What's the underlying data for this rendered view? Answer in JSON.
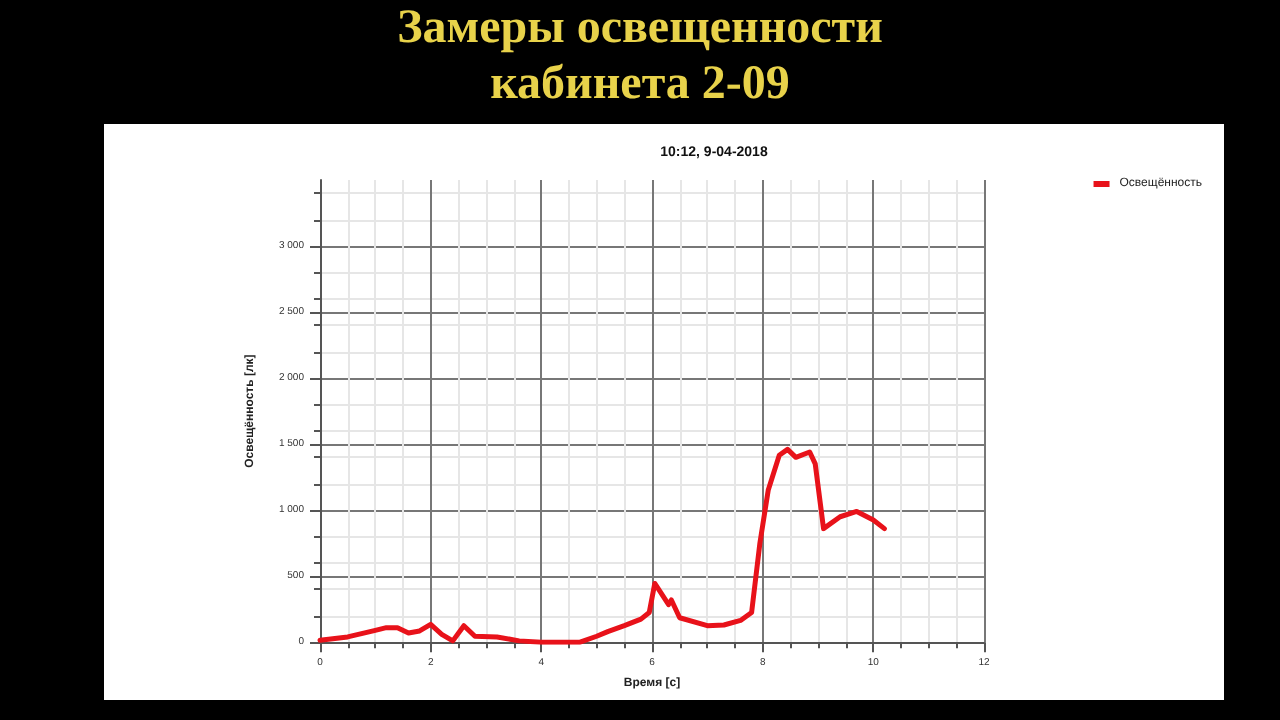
{
  "chart_data": {
    "type": "line",
    "title": "Замеры освещенности кабинета 2-09",
    "subtitle": "10:12, 9-04-2018",
    "xlabel": "Время [с]",
    "ylabel": "Освещённость [лк]",
    "x": [
      0,
      0.5,
      1.0,
      1.2,
      1.4,
      1.6,
      1.8,
      2.0,
      2.2,
      2.4,
      2.6,
      2.8,
      3.2,
      3.6,
      4.0,
      4.7,
      5.0,
      5.2,
      5.5,
      5.8,
      5.95,
      6.05,
      6.3,
      6.35,
      6.5,
      7.0,
      7.3,
      7.6,
      7.8,
      7.95,
      8.1,
      8.3,
      8.45,
      8.6,
      8.85,
      8.95,
      9.1,
      9.4,
      9.7,
      10.0,
      10.2
    ],
    "series": [
      {
        "name": "Освещённость",
        "color": "#e8121a",
        "values": [
          15,
          40,
          90,
          110,
          110,
          70,
          85,
          135,
          60,
          10,
          125,
          45,
          40,
          10,
          0,
          0,
          45,
          80,
          125,
          175,
          225,
          445,
          285,
          320,
          185,
          125,
          130,
          165,
          225,
          750,
          1150,
          1415,
          1460,
          1400,
          1440,
          1350,
          860,
          950,
          990,
          925,
          860
        ]
      }
    ],
    "xlim": [
      0,
      12
    ],
    "xticks": [
      0,
      2,
      4,
      6,
      8,
      10,
      12
    ],
    "ylim": [
      0,
      3500
    ],
    "yticks": [
      0,
      500,
      {
        "value": 1000,
        "label": "1 000"
      },
      {
        "value": 1500,
        "label": "1 500"
      },
      {
        "value": 2000,
        "label": "2 000"
      },
      {
        "value": 2500,
        "label": "2 500"
      },
      {
        "value": 3000,
        "label": "3 000"
      }
    ],
    "grid": true,
    "legend": "top right",
    "marker": "none",
    "line_style": "solid"
  }
}
